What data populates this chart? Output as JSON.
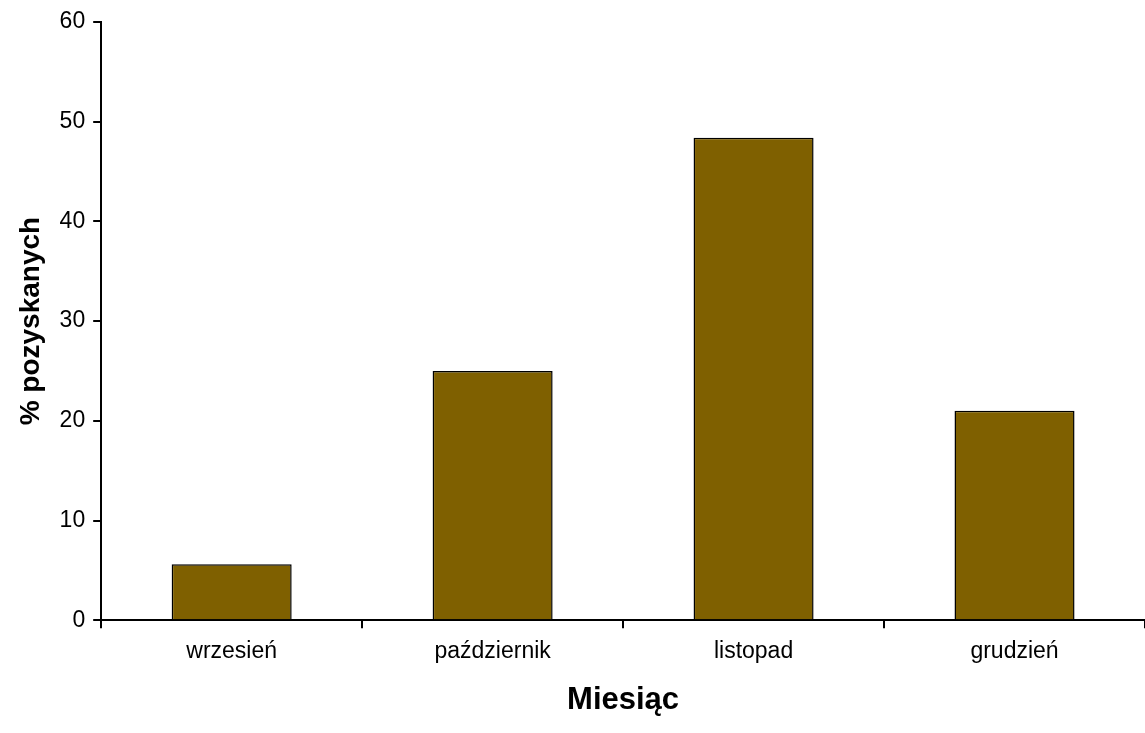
{
  "chart_data": {
    "type": "bar",
    "xlabel": "Miesiąc",
    "ylabel": "% pozyskanych",
    "categories": [
      "wrzesień",
      "październik",
      "listopad",
      "grudzień"
    ],
    "values": [
      5.6,
      25,
      48.4,
      21
    ],
    "color": "#7f6000",
    "ylim": [
      0,
      60
    ],
    "yticks": [
      0,
      10,
      20,
      30,
      40,
      50,
      60
    ],
    "grid": false
  }
}
